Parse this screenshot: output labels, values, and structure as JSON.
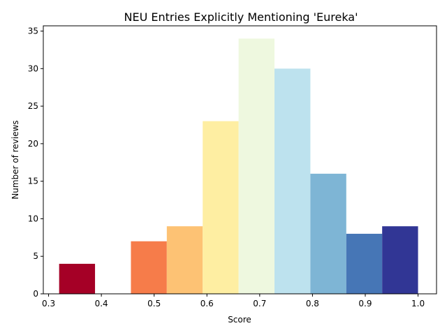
{
  "chart_data": {
    "type": "bar",
    "title": "NEU Entries Explicitly Mentioning 'Eureka'",
    "xlabel": "Score",
    "ylabel": "Number of reviews",
    "xlim": [
      0.29,
      1.035
    ],
    "ylim": [
      0,
      35.7
    ],
    "xticks": [
      "0.3",
      "0.4",
      "0.5",
      "0.6",
      "0.7",
      "0.8",
      "0.9",
      "1.0"
    ],
    "yticks": [
      "0",
      "5",
      "10",
      "15",
      "20",
      "25",
      "30",
      "35"
    ],
    "grid": false,
    "bins": [
      {
        "x0": 0.32,
        "x1": 0.388,
        "count": 4,
        "color": "#a50026"
      },
      {
        "x0": 0.388,
        "x1": 0.456,
        "count": 0,
        "color": "#d73027"
      },
      {
        "x0": 0.456,
        "x1": 0.524,
        "count": 7,
        "color": "#f67c4a"
      },
      {
        "x0": 0.524,
        "x1": 0.592,
        "count": 9,
        "color": "#fdc274"
      },
      {
        "x0": 0.592,
        "x1": 0.66,
        "count": 23,
        "color": "#feeea2"
      },
      {
        "x0": 0.66,
        "x1": 0.728,
        "count": 34,
        "color": "#eef8df"
      },
      {
        "x0": 0.728,
        "x1": 0.796,
        "count": 30,
        "color": "#bde2ee"
      },
      {
        "x0": 0.796,
        "x1": 0.864,
        "count": 16,
        "color": "#7eb5d5"
      },
      {
        "x0": 0.864,
        "x1": 0.932,
        "count": 8,
        "color": "#4676b6"
      },
      {
        "x0": 0.932,
        "x1": 1.0,
        "count": 9,
        "color": "#313695"
      }
    ]
  }
}
